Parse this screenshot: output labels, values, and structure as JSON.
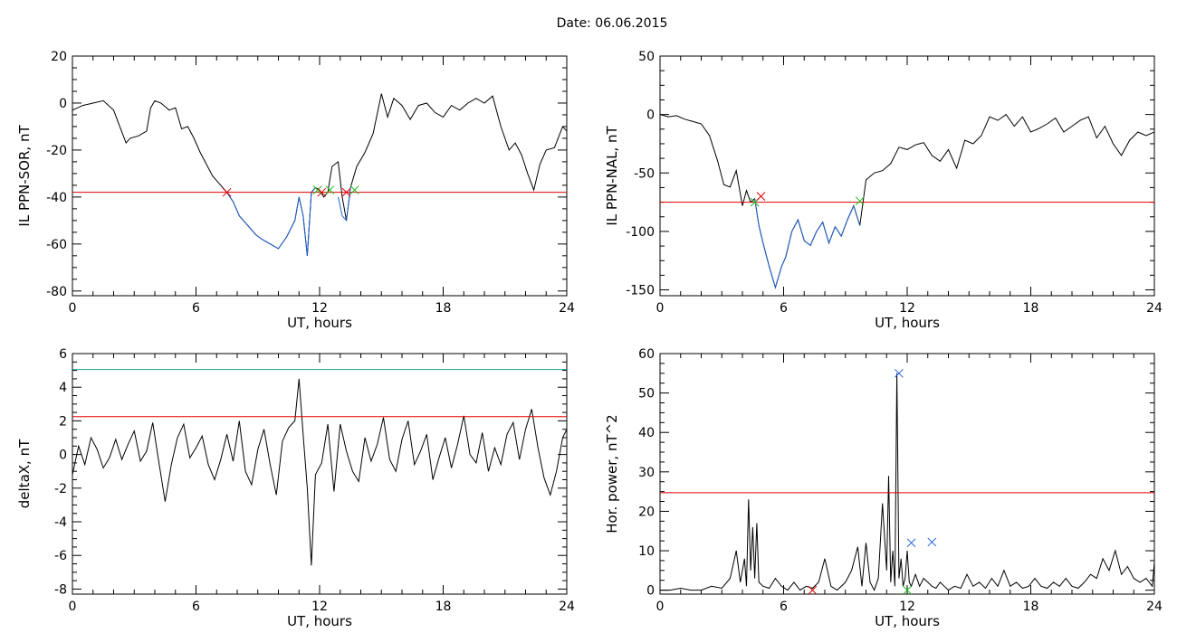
{
  "figure": {
    "title": "Date:  06.06.2015"
  },
  "colors": {
    "trace": "#000000",
    "threshold": "#e00000",
    "highlight": "#1f5fd0",
    "upper_line": "#1aa0a0",
    "marker_red": "#e00000",
    "marker_green": "#20c020",
    "marker_blue": "#2060e0"
  },
  "chart_data": [
    {
      "id": "ppn-sor",
      "type": "line",
      "title": "",
      "xlabel": "UT, hours",
      "ylabel": "IL PPN-SOR, nT",
      "xlim": [
        0,
        24
      ],
      "ylim": [
        -82,
        20
      ],
      "xticks": [
        0,
        6,
        12,
        18,
        24
      ],
      "yticks": [
        20,
        0,
        -20,
        -40,
        -60,
        -80
      ],
      "threshold": -38,
      "series": [
        {
          "role": "main",
          "x": [
            0,
            0.5,
            1,
            1.5,
            2,
            2.3,
            2.6,
            2.8,
            3.2,
            3.6,
            3.8,
            4.0,
            4.3,
            4.7,
            5.0,
            5.3,
            5.6,
            5.9,
            6.2,
            6.5,
            6.8,
            7.1,
            7.5,
            7.8,
            8.1,
            8.5,
            8.9,
            9.2,
            9.6,
            10.0,
            10.4,
            10.8,
            11.0,
            11.2,
            11.4,
            11.6,
            11.8,
            12.0,
            12.2,
            12.4,
            12.6,
            12.9,
            13.1,
            13.3,
            13.5,
            13.8,
            14.2,
            14.6,
            15.0,
            15.3,
            15.6,
            16.0,
            16.4,
            16.8,
            17.2,
            17.6,
            18.0,
            18.4,
            18.8,
            19.2,
            19.6,
            20.0,
            20.4,
            20.8,
            21.2,
            21.5,
            21.8,
            22.1,
            22.4,
            22.7,
            23.0,
            23.4,
            23.8,
            24
          ],
          "y": [
            -3,
            -1,
            0,
            1,
            -3,
            -10,
            -17,
            -15,
            -14,
            -12,
            -2,
            1,
            0,
            -3,
            -2,
            -11,
            -10,
            -15,
            -21,
            -26,
            -31,
            -34,
            -38,
            -42,
            -48,
            -52,
            -56,
            -58,
            -60,
            -62,
            -57,
            -50,
            -40,
            -48,
            -65,
            -38,
            -36,
            -37,
            -40,
            -38,
            -27,
            -25,
            -40,
            -50,
            -36,
            -27,
            -21,
            -13,
            4,
            -6,
            2,
            -1,
            -7,
            -1,
            0,
            -4,
            -6,
            -1,
            -3,
            0,
            2,
            0,
            3,
            -10,
            -20,
            -17,
            -22,
            -30,
            -37,
            -26,
            -20,
            -19,
            -10,
            -12
          ]
        },
        {
          "role": "highlight",
          "x": [
            7.5,
            7.8,
            8.1,
            8.5,
            8.9,
            9.2,
            9.6,
            10.0,
            10.4,
            10.8,
            11.0,
            11.2,
            11.4,
            11.6,
            11.8
          ],
          "y": [
            -38,
            -42,
            -48,
            -52,
            -56,
            -58,
            -60,
            -62,
            -57,
            -50,
            -40,
            -48,
            -65,
            -38,
            -36
          ]
        },
        {
          "role": "highlight",
          "x": [
            12.9,
            13.1,
            13.3,
            13.5
          ],
          "y": [
            -40,
            -48,
            -50,
            -36
          ]
        }
      ],
      "markers": [
        {
          "x": 7.5,
          "y": -38,
          "color": "red"
        },
        {
          "x": 11.9,
          "y": -37,
          "color": "green"
        },
        {
          "x": 12.1,
          "y": -38,
          "color": "red"
        },
        {
          "x": 12.5,
          "y": -37,
          "color": "green"
        },
        {
          "x": 13.3,
          "y": -38,
          "color": "red"
        },
        {
          "x": 13.7,
          "y": -37,
          "color": "green"
        }
      ]
    },
    {
      "id": "ppn-nal",
      "type": "line",
      "title": "",
      "xlabel": "UT, hours",
      "ylabel": "IL PPN-NAL, nT",
      "xlim": [
        0,
        24
      ],
      "ylim": [
        -155,
        50
      ],
      "xticks": [
        0,
        6,
        12,
        18,
        24
      ],
      "yticks": [
        50,
        0,
        -50,
        -100,
        -150
      ],
      "threshold": -75,
      "series": [
        {
          "role": "main",
          "x": [
            0,
            0.4,
            0.8,
            1.2,
            1.6,
            2.0,
            2.4,
            2.8,
            3.1,
            3.4,
            3.7,
            4.0,
            4.2,
            4.4,
            4.6,
            4.8,
            5.0,
            5.3,
            5.6,
            5.9,
            6.1,
            6.4,
            6.7,
            7.0,
            7.3,
            7.6,
            7.9,
            8.2,
            8.5,
            8.8,
            9.1,
            9.4,
            9.7,
            10.0,
            10.4,
            10.8,
            11.2,
            11.6,
            12.0,
            12.4,
            12.8,
            13.2,
            13.6,
            14.0,
            14.4,
            14.8,
            15.2,
            15.6,
            16.0,
            16.4,
            16.8,
            17.2,
            17.6,
            18.0,
            18.4,
            18.8,
            19.2,
            19.6,
            20.0,
            20.4,
            20.8,
            21.2,
            21.6,
            22.0,
            22.4,
            22.8,
            23.2,
            23.6,
            24
          ],
          "y": [
            0,
            -2,
            -1,
            -4,
            -6,
            -8,
            -18,
            -40,
            -60,
            -62,
            -48,
            -78,
            -65,
            -75,
            -72,
            -95,
            -110,
            -130,
            -148,
            -130,
            -122,
            -100,
            -90,
            -108,
            -112,
            -100,
            -92,
            -110,
            -96,
            -104,
            -90,
            -78,
            -95,
            -56,
            -50,
            -48,
            -42,
            -28,
            -30,
            -26,
            -24,
            -35,
            -40,
            -30,
            -46,
            -22,
            -25,
            -18,
            -2,
            -5,
            0,
            -10,
            -2,
            -15,
            -12,
            -8,
            -3,
            -15,
            -10,
            -5,
            -2,
            -20,
            -10,
            -25,
            -35,
            -22,
            -15,
            -18,
            -15
          ]
        },
        {
          "role": "highlight",
          "x": [
            4.6,
            4.8,
            5.0,
            5.3,
            5.6,
            5.9,
            6.1,
            6.4,
            6.7,
            7.0,
            7.3,
            7.6,
            7.9,
            8.2,
            8.5,
            8.8,
            9.1,
            9.4,
            9.7
          ],
          "y": [
            -72,
            -95,
            -110,
            -130,
            -148,
            -130,
            -122,
            -100,
            -90,
            -108,
            -112,
            -100,
            -92,
            -110,
            -96,
            -104,
            -90,
            -78,
            -95
          ]
        }
      ],
      "markers": [
        {
          "x": 4.6,
          "y": -75,
          "color": "green"
        },
        {
          "x": 4.9,
          "y": -70,
          "color": "red"
        },
        {
          "x": 9.7,
          "y": -74,
          "color": "green"
        }
      ]
    },
    {
      "id": "deltax",
      "type": "line",
      "title": "",
      "xlabel": "UT, hours",
      "ylabel": "deltaX, nT",
      "xlim": [
        0,
        24
      ],
      "ylim": [
        -8.3,
        6
      ],
      "xticks": [
        0,
        6,
        12,
        18,
        24
      ],
      "yticks": [
        6,
        4,
        2,
        0,
        -2,
        -4,
        -6,
        -8
      ],
      "threshold": 2.25,
      "upper_line": 5.05,
      "series": [
        {
          "role": "main",
          "x": [
            0,
            0.3,
            0.6,
            0.9,
            1.2,
            1.5,
            1.8,
            2.1,
            2.4,
            2.7,
            3.0,
            3.3,
            3.6,
            3.9,
            4.2,
            4.5,
            4.8,
            5.1,
            5.4,
            5.7,
            6.0,
            6.3,
            6.6,
            6.9,
            7.2,
            7.5,
            7.8,
            8.1,
            8.4,
            8.7,
            9.0,
            9.3,
            9.6,
            9.9,
            10.2,
            10.5,
            10.8,
            11.0,
            11.2,
            11.4,
            11.6,
            11.8,
            12.1,
            12.4,
            12.7,
            13.0,
            13.3,
            13.6,
            13.9,
            14.2,
            14.5,
            14.8,
            15.1,
            15.4,
            15.7,
            16.0,
            16.3,
            16.6,
            16.9,
            17.2,
            17.5,
            17.8,
            18.1,
            18.4,
            18.7,
            19.0,
            19.3,
            19.6,
            19.9,
            20.2,
            20.5,
            20.8,
            21.1,
            21.4,
            21.7,
            22.0,
            22.3,
            22.6,
            22.9,
            23.2,
            23.5,
            23.8,
            24
          ],
          "y": [
            -1.2,
            0.5,
            -0.6,
            1.0,
            0.3,
            -0.8,
            -0.2,
            0.9,
            -0.3,
            0.6,
            1.4,
            -0.4,
            0.2,
            1.9,
            -0.5,
            -2.8,
            -0.6,
            1.0,
            1.8,
            -0.2,
            0.4,
            1.1,
            -0.6,
            -1.5,
            -0.3,
            1.2,
            -0.4,
            2.0,
            -1.0,
            -1.8,
            0.3,
            1.5,
            -0.6,
            -2.4,
            0.8,
            1.6,
            2.0,
            4.5,
            1.2,
            -2.0,
            -6.6,
            -1.2,
            -0.5,
            1.8,
            -2.2,
            1.8,
            0.2,
            -1.0,
            -1.6,
            1.0,
            -0.4,
            0.6,
            2.2,
            -0.3,
            -1.0,
            0.9,
            2.0,
            -0.6,
            0.2,
            1.2,
            -1.5,
            -0.2,
            1.0,
            -0.8,
            0.6,
            2.3,
            0.0,
            -0.5,
            1.3,
            -1.0,
            0.4,
            -0.6,
            1.2,
            1.9,
            -0.3,
            1.5,
            2.7,
            0.4,
            -1.4,
            -2.4,
            -1.0,
            1.0,
            1.5
          ]
        }
      ],
      "markers": []
    },
    {
      "id": "hor-power",
      "type": "line",
      "title": "",
      "xlabel": "UT, hours",
      "ylabel": "Hor. power, nT^2",
      "xlim": [
        0,
        24
      ],
      "ylim": [
        -1,
        60
      ],
      "xticks": [
        0,
        6,
        12,
        18,
        24
      ],
      "yticks": [
        60,
        50,
        40,
        30,
        20,
        10,
        0
      ],
      "threshold": 24.7,
      "series": [
        {
          "role": "main",
          "x": [
            0,
            0.5,
            1,
            1.5,
            2,
            2.5,
            3,
            3.4,
            3.7,
            3.9,
            4.1,
            4.2,
            4.3,
            4.4,
            4.5,
            4.6,
            4.7,
            4.8,
            5.0,
            5.3,
            5.6,
            5.9,
            6.2,
            6.5,
            6.8,
            7.1,
            7.4,
            7.7,
            8.0,
            8.3,
            8.6,
            9.0,
            9.3,
            9.6,
            9.8,
            10.0,
            10.2,
            10.4,
            10.6,
            10.8,
            11.0,
            11.1,
            11.2,
            11.3,
            11.4,
            11.5,
            11.6,
            11.7,
            11.8,
            11.9,
            12.0,
            12.1,
            12.2,
            12.4,
            12.6,
            12.8,
            13.0,
            13.2,
            13.4,
            13.6,
            13.8,
            14.0,
            14.3,
            14.6,
            14.9,
            15.2,
            15.5,
            15.8,
            16.1,
            16.4,
            16.7,
            17.0,
            17.3,
            17.6,
            17.9,
            18.2,
            18.5,
            18.8,
            19.1,
            19.4,
            19.7,
            20.0,
            20.3,
            20.6,
            20.9,
            21.2,
            21.5,
            21.8,
            22.1,
            22.4,
            22.7,
            23.0,
            23.3,
            23.6,
            23.9,
            24
          ],
          "y": [
            0,
            0,
            0.5,
            0,
            0,
            1,
            0.5,
            3,
            10,
            2,
            8,
            1,
            23,
            5,
            16,
            3,
            17,
            2,
            1,
            0.5,
            3,
            1,
            0,
            2,
            0,
            1,
            0.5,
            2,
            8,
            1,
            0,
            2,
            5,
            11,
            1,
            12,
            2,
            0,
            3,
            22,
            5,
            29,
            2,
            10,
            1,
            55,
            3,
            8,
            1,
            3,
            10,
            2,
            1,
            4,
            1,
            3,
            2,
            1,
            0.5,
            2,
            1,
            0,
            1,
            0.5,
            4,
            1,
            2,
            0.5,
            3,
            1,
            5,
            1,
            2,
            0.5,
            1,
            3,
            1,
            0.5,
            2,
            1,
            3,
            1,
            0.5,
            2,
            4,
            3,
            8,
            5,
            10,
            4,
            6,
            3,
            2,
            3,
            1,
            7
          ]
        }
      ],
      "markers": [
        {
          "x": 11.6,
          "y": 55,
          "color": "blue"
        },
        {
          "x": 12.2,
          "y": 12,
          "color": "blue"
        },
        {
          "x": 13.2,
          "y": 12.2,
          "color": "blue"
        },
        {
          "x": 7.4,
          "y": 0,
          "color": "red"
        },
        {
          "x": 12.0,
          "y": 0,
          "color": "green"
        }
      ]
    }
  ]
}
